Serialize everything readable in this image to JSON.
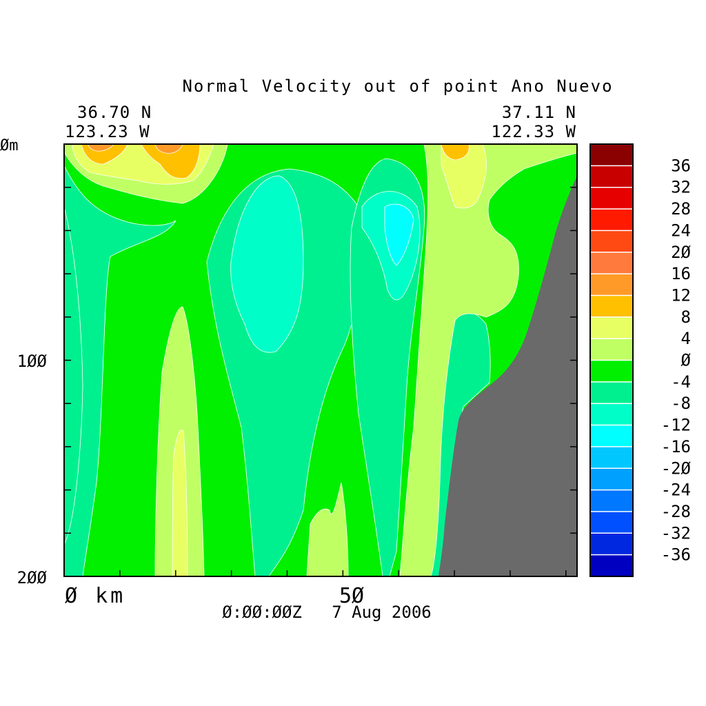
{
  "chart_data": {
    "type": "heatmap",
    "title": "Normal Velocity out of point Ano Nuevo",
    "start_point": {
      "lat": "36.70 N",
      "lon": "123.23 W"
    },
    "end_point": {
      "lat": "37.11 N",
      "lon": "122.33 W"
    },
    "xlabel_zero": "Ø km",
    "x_tick_label": "5Ø",
    "y_top_label": "Øm",
    "y_tick_labels": [
      "1ØØ",
      "2ØØ"
    ],
    "timestamp": "Ø:ØØ:ØØZ   7 Aug 2006",
    "x_range_km": [
      0,
      92
    ],
    "y_range_m": [
      0,
      200
    ],
    "x_tick_values_km": [
      10,
      20,
      30,
      40,
      50,
      60,
      70,
      80,
      90
    ],
    "y_tick_values_m": [
      20,
      40,
      60,
      80,
      100,
      120,
      140,
      160,
      180
    ],
    "colorbar": {
      "levels": [
        "36",
        "32",
        "28",
        "24",
        "2Ø",
        "16",
        "12",
        "8",
        "4",
        "Ø",
        "-4",
        "-8",
        "-12",
        "-16",
        "-2Ø",
        "-24",
        "-28",
        "-32",
        "-36"
      ],
      "colors": [
        "#8b0000",
        "#c80000",
        "#e60000",
        "#ff1a00",
        "#ff4a14",
        "#ff7a3c",
        "#ff9a28",
        "#ffc000",
        "#e8ff64",
        "#c0ff64",
        "#00f000",
        "#00f090",
        "#00ffc8",
        "#00ffff",
        "#00c8ff",
        "#00a0ff",
        "#0078ff",
        "#0050ff",
        "#0028e0",
        "#0000c0"
      ]
    },
    "colors": {
      "land": "#6a6a6a",
      "green": "#00f000",
      "seagreen": "#00f090",
      "aqua": "#00ffc8",
      "cyan": "#00ffff",
      "lightyellow": "#e8ff64",
      "yellowgreen": "#c0ff64",
      "orange": "#ffc000",
      "darkorange": "#ff9a28"
    }
  }
}
